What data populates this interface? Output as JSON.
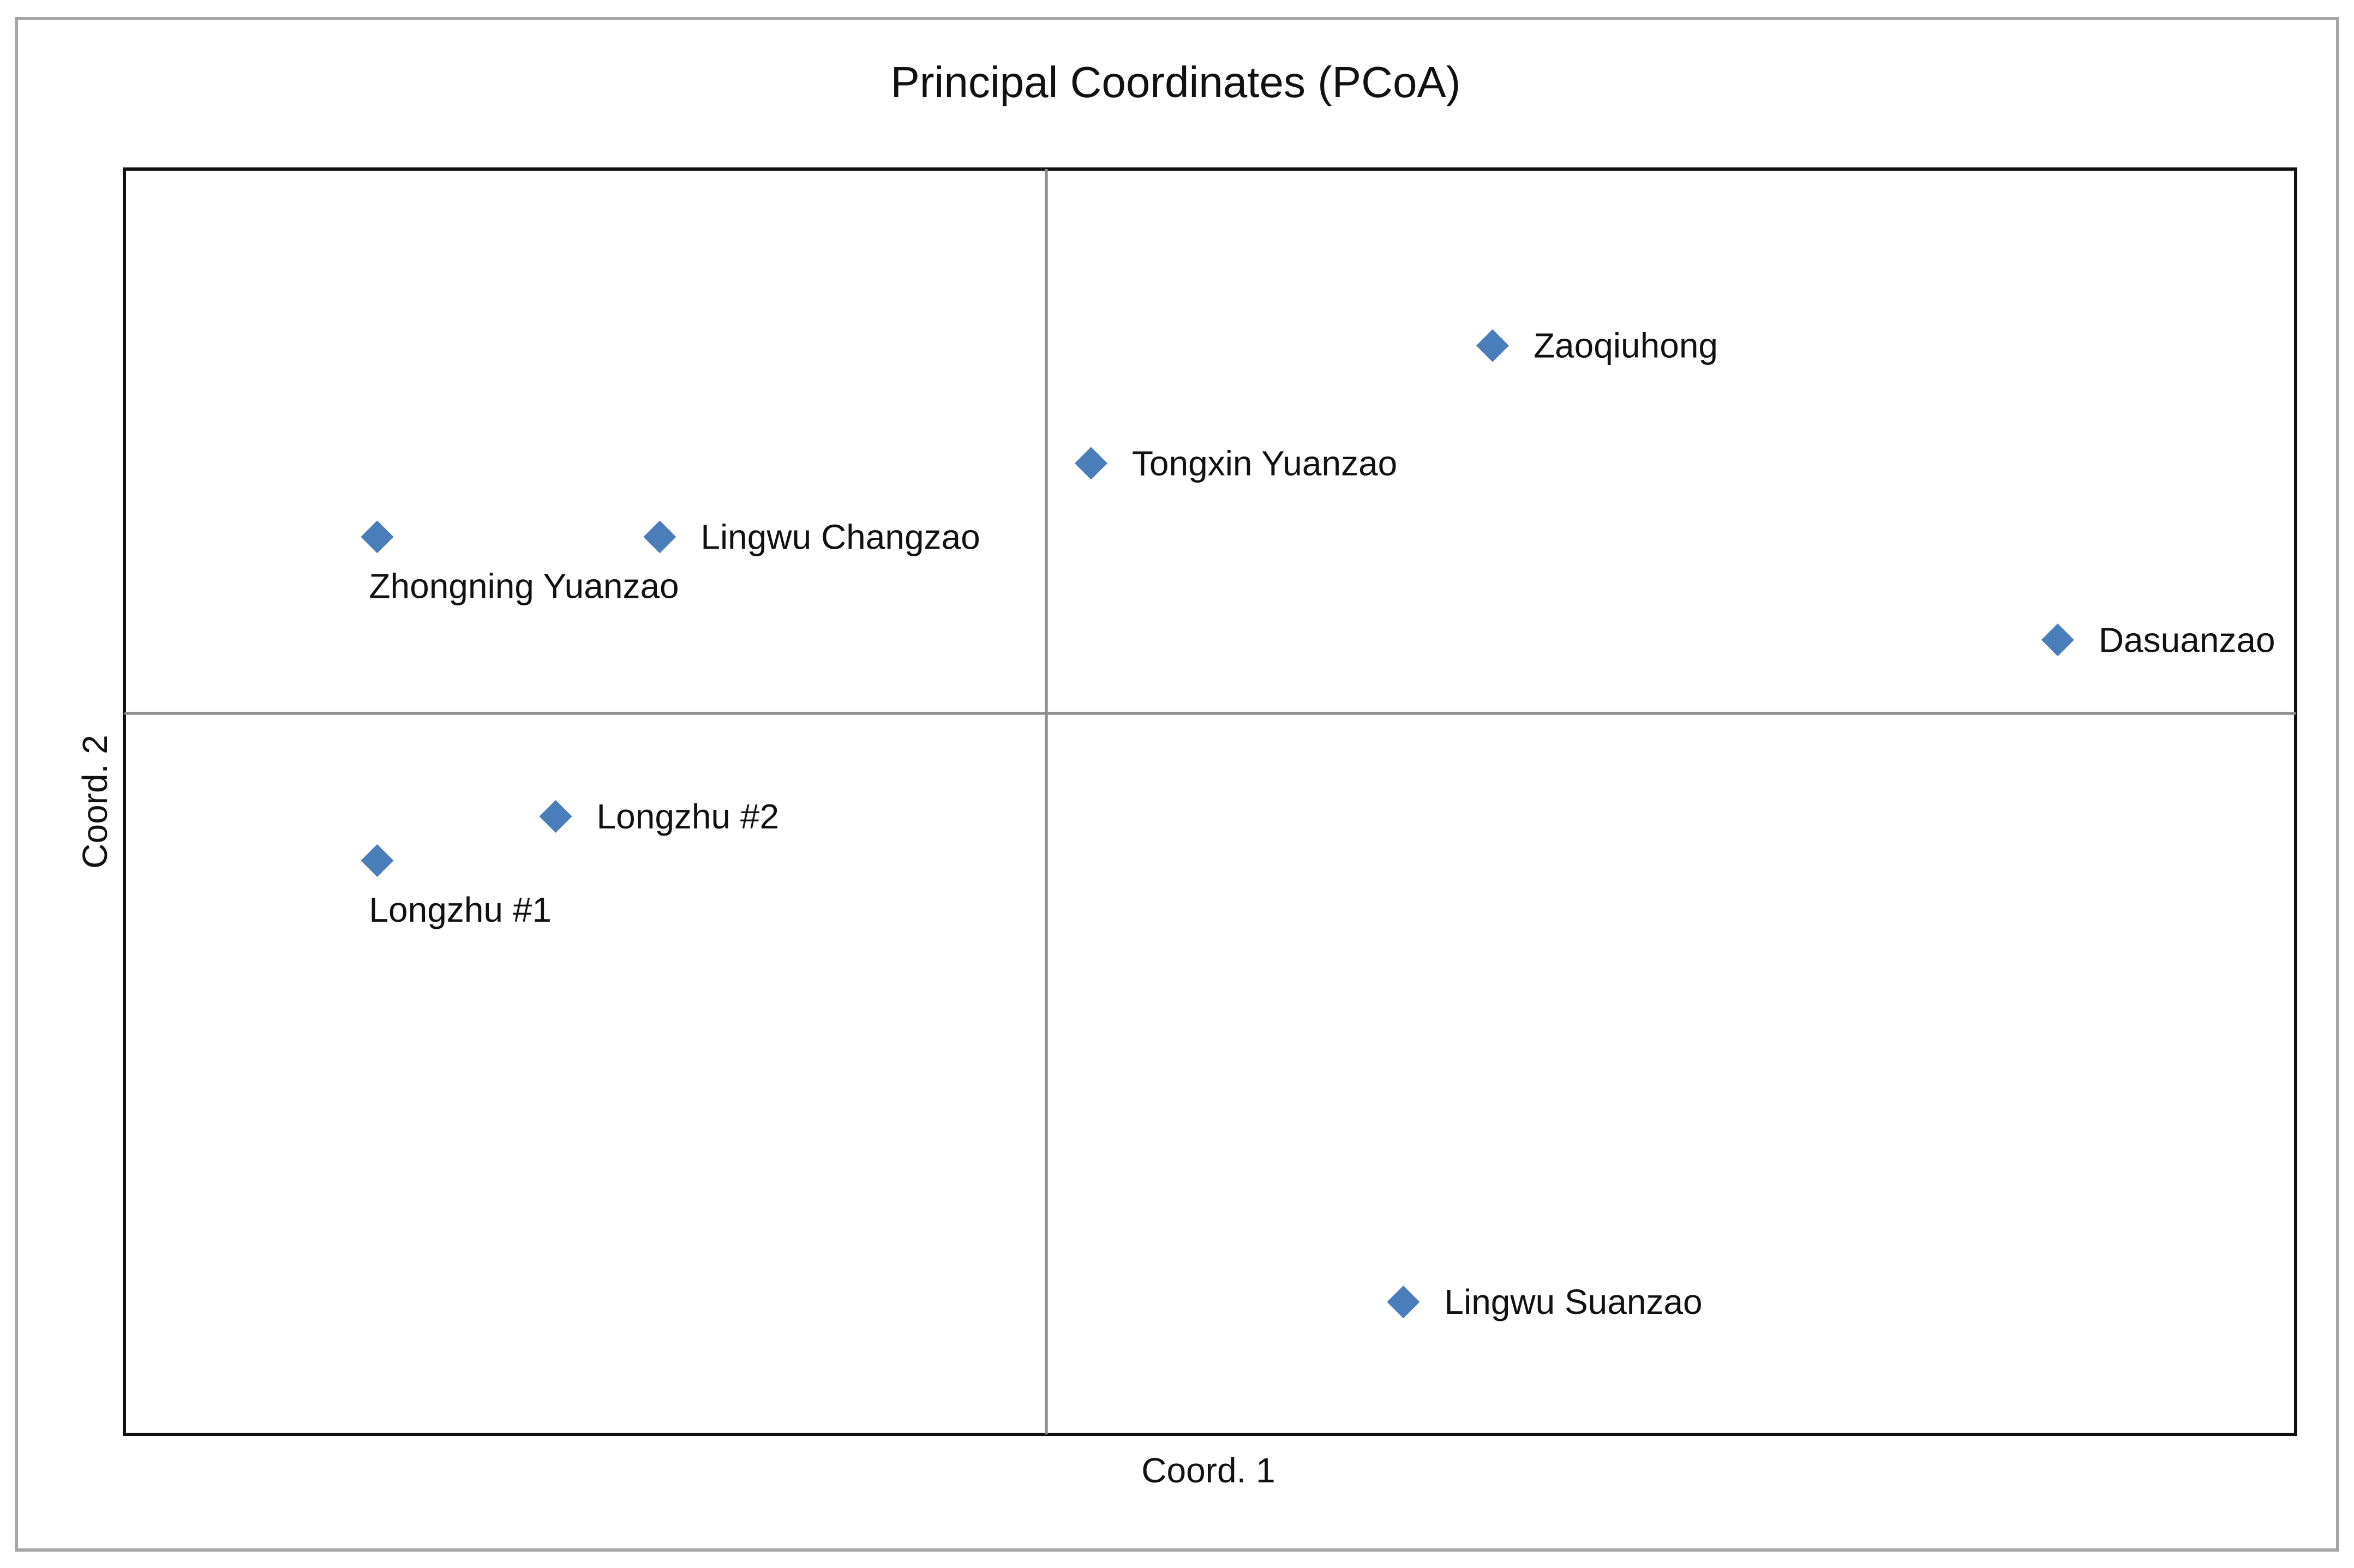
{
  "chart_data": {
    "type": "scatter",
    "title": "Principal Coordinates (PCoA)",
    "xlabel": "Coord. 1",
    "ylabel": "Coord. 2",
    "xlim": [
      -0.62,
      0.84
    ],
    "ylim": [
      -0.49,
      0.37
    ],
    "grid": false,
    "zero_lines": true,
    "legend": "none",
    "marker": "diamond",
    "series_color": "#4a7ebb",
    "points": [
      {
        "label": "Zaoqiuhong",
        "x": 0.3,
        "y": 0.25,
        "label_side": "right"
      },
      {
        "label": "Tongxin Yuanzao",
        "x": 0.03,
        "y": 0.17,
        "label_side": "right"
      },
      {
        "label": "Lingwu Changzao",
        "x": -0.26,
        "y": 0.12,
        "label_side": "right"
      },
      {
        "label": "Zhongning Yuanzao",
        "x": -0.45,
        "y": 0.12,
        "label_side": "below"
      },
      {
        "label": "Dasuanzao",
        "x": 0.68,
        "y": 0.05,
        "label_side": "right"
      },
      {
        "label": "Longzhu #2",
        "x": -0.33,
        "y": -0.07,
        "label_side": "right"
      },
      {
        "label": "Longzhu #1",
        "x": -0.45,
        "y": -0.1,
        "label_side": "below"
      },
      {
        "label": "Lingwu Suanzao",
        "x": 0.24,
        "y": -0.4,
        "label_side": "right"
      }
    ]
  },
  "colors": {
    "marker": "#4a7ebb",
    "frame": "#a6a6a6",
    "plot_border": "#111111",
    "zero_lines": "#8c8c8c"
  }
}
